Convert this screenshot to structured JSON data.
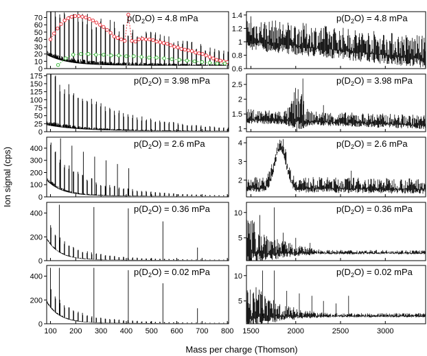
{
  "figure": {
    "xlabel": "Mass per charge (Thomson)",
    "ylabel": "Ion signal (cps)"
  },
  "chart_data": [
    {
      "panel": "left-1",
      "type": "line",
      "annotation": "p(D2O) = 4.8 mPa",
      "xlim": [
        85,
        805
      ],
      "ylim": [
        0,
        78
      ],
      "yticks": [
        0,
        10,
        20,
        30,
        40,
        50,
        60,
        70
      ],
      "xticks": [
        100,
        200,
        300,
        400,
        500,
        600,
        700,
        800
      ],
      "show_xticklabels": false,
      "series": [
        {
          "name": "spectrum",
          "color": "#000000"
        },
        {
          "name": "peak maxima",
          "color": "#e8323c",
          "marker": "open-circle",
          "x": [
            100,
            114,
            128,
            142,
            156,
            170,
            184,
            198,
            212,
            226,
            240,
            254,
            268,
            282,
            296,
            310,
            324,
            338,
            352,
            366,
            380,
            394,
            408,
            422,
            436,
            450,
            464,
            478,
            492,
            506,
            520,
            534,
            548,
            562,
            576,
            590,
            604,
            618,
            632,
            646,
            660,
            674,
            688,
            702,
            716,
            730,
            744,
            758,
            772,
            786,
            800
          ],
          "y": [
            40,
            48,
            55,
            61,
            66,
            69,
            71,
            72,
            72,
            71,
            70,
            68,
            66,
            63,
            60,
            57,
            53,
            49,
            44,
            42,
            40,
            38,
            74,
            38,
            37,
            40,
            41,
            40,
            40,
            39,
            37,
            36,
            35,
            34,
            32,
            30,
            29,
            27,
            26,
            25,
            24,
            22,
            21,
            20,
            18,
            16,
            14,
            12,
            11,
            10,
            9
          ]
        },
        {
          "name": "envelope",
          "color": "#3ab83a",
          "marker": "open-circle",
          "x": [
            130,
            160,
            190,
            220,
            250,
            280,
            310,
            340,
            370,
            400,
            430,
            460,
            490,
            520,
            550,
            580,
            610,
            640,
            670,
            700,
            730,
            760,
            790
          ],
          "y": [
            5,
            14,
            19,
            20,
            20,
            19,
            19,
            18,
            18,
            17,
            17,
            16,
            15,
            15,
            14,
            13,
            12,
            11,
            10,
            9,
            8,
            7,
            7
          ]
        }
      ]
    },
    {
      "panel": "right-1",
      "type": "line",
      "annotation": "p(D2O) = 4.8 mPa",
      "xlim": [
        1450,
        3450
      ],
      "ylim": [
        0.6,
        1.45
      ],
      "yticks": [
        0.6,
        0.8,
        1.0,
        1.2,
        1.4
      ],
      "xticks": [
        1500,
        2000,
        2500,
        3000
      ],
      "show_xticklabels": false,
      "series": [
        {
          "name": "spectrum",
          "color": "#000000"
        }
      ]
    },
    {
      "panel": "left-2",
      "type": "line",
      "annotation": "p(D2O) = 3.98 mPa",
      "xlim": [
        85,
        805
      ],
      "ylim": [
        0,
        180
      ],
      "yticks": [
        0,
        25,
        50,
        75,
        100,
        125,
        150,
        175
      ],
      "xticks": [
        100,
        200,
        300,
        400,
        500,
        600,
        700,
        800
      ],
      "show_xticklabels": false,
      "series": [
        {
          "name": "spectrum",
          "color": "#000000"
        }
      ]
    },
    {
      "panel": "right-2",
      "type": "line",
      "annotation": "p(D2O) = 3.98 mPa",
      "xlim": [
        1450,
        3450
      ],
      "ylim": [
        0.9,
        2.85
      ],
      "yticks": [
        1.0,
        1.5,
        2.0,
        2.5
      ],
      "xticks": [
        1500,
        2000,
        2500,
        3000
      ],
      "show_xticklabels": false,
      "series": [
        {
          "name": "spectrum",
          "color": "#000000"
        }
      ]
    },
    {
      "panel": "left-3",
      "type": "line",
      "annotation": "p(D2O) = 2.6 mPa",
      "xlim": [
        85,
        805
      ],
      "ylim": [
        0,
        490
      ],
      "yticks": [
        0,
        100,
        200,
        300,
        400
      ],
      "xticks": [
        100,
        200,
        300,
        400,
        500,
        600,
        700,
        800
      ],
      "show_xticklabels": false,
      "series": [
        {
          "name": "spectrum",
          "color": "#000000"
        }
      ]
    },
    {
      "panel": "right-3",
      "type": "line",
      "annotation": "p(D2O) = 2.6 mPa",
      "xlim": [
        1450,
        3450
      ],
      "ylim": [
        1.1,
        4.3
      ],
      "yticks": [
        2,
        3,
        4
      ],
      "xticks": [
        1500,
        2000,
        2500,
        3000
      ],
      "show_xticklabels": false,
      "series": [
        {
          "name": "spectrum",
          "color": "#000000"
        }
      ]
    },
    {
      "panel": "left-4",
      "type": "line",
      "annotation": "p(D2O) = 0.36 mPa",
      "xlim": [
        85,
        805
      ],
      "ylim": [
        0,
        490
      ],
      "yticks": [
        0,
        200,
        400
      ],
      "xticks": [
        100,
        200,
        300,
        400,
        500,
        600,
        700,
        800
      ],
      "show_xticklabels": false,
      "series": [
        {
          "name": "spectrum",
          "color": "#000000"
        }
      ]
    },
    {
      "panel": "right-4",
      "type": "line",
      "annotation": "p(D2O) = 0.36 mPa",
      "xlim": [
        1450,
        3450
      ],
      "ylim": [
        0.5,
        12
      ],
      "yticks": [
        5,
        10
      ],
      "xticks": [
        1500,
        2000,
        2500,
        3000
      ],
      "show_xticklabels": false,
      "series": [
        {
          "name": "spectrum",
          "color": "#000000"
        }
      ]
    },
    {
      "panel": "left-5",
      "type": "line",
      "annotation": "p(D2O) = 0.02 mPa",
      "xlim": [
        85,
        805
      ],
      "ylim": [
        0,
        490
      ],
      "yticks": [
        0,
        200,
        400
      ],
      "xticks": [
        100,
        200,
        300,
        400,
        500,
        600,
        700,
        800
      ],
      "show_xticklabels": true,
      "series": [
        {
          "name": "spectrum",
          "color": "#000000"
        }
      ]
    },
    {
      "panel": "right-5",
      "type": "line",
      "annotation": "p(D2O) = 0.02 mPa",
      "xlim": [
        1450,
        3450
      ],
      "ylim": [
        0.5,
        12
      ],
      "yticks": [
        5,
        10
      ],
      "xticks": [
        1500,
        2000,
        2500,
        3000
      ],
      "show_xticklabels": true,
      "series": [
        {
          "name": "spectrum",
          "color": "#000000"
        }
      ]
    }
  ]
}
